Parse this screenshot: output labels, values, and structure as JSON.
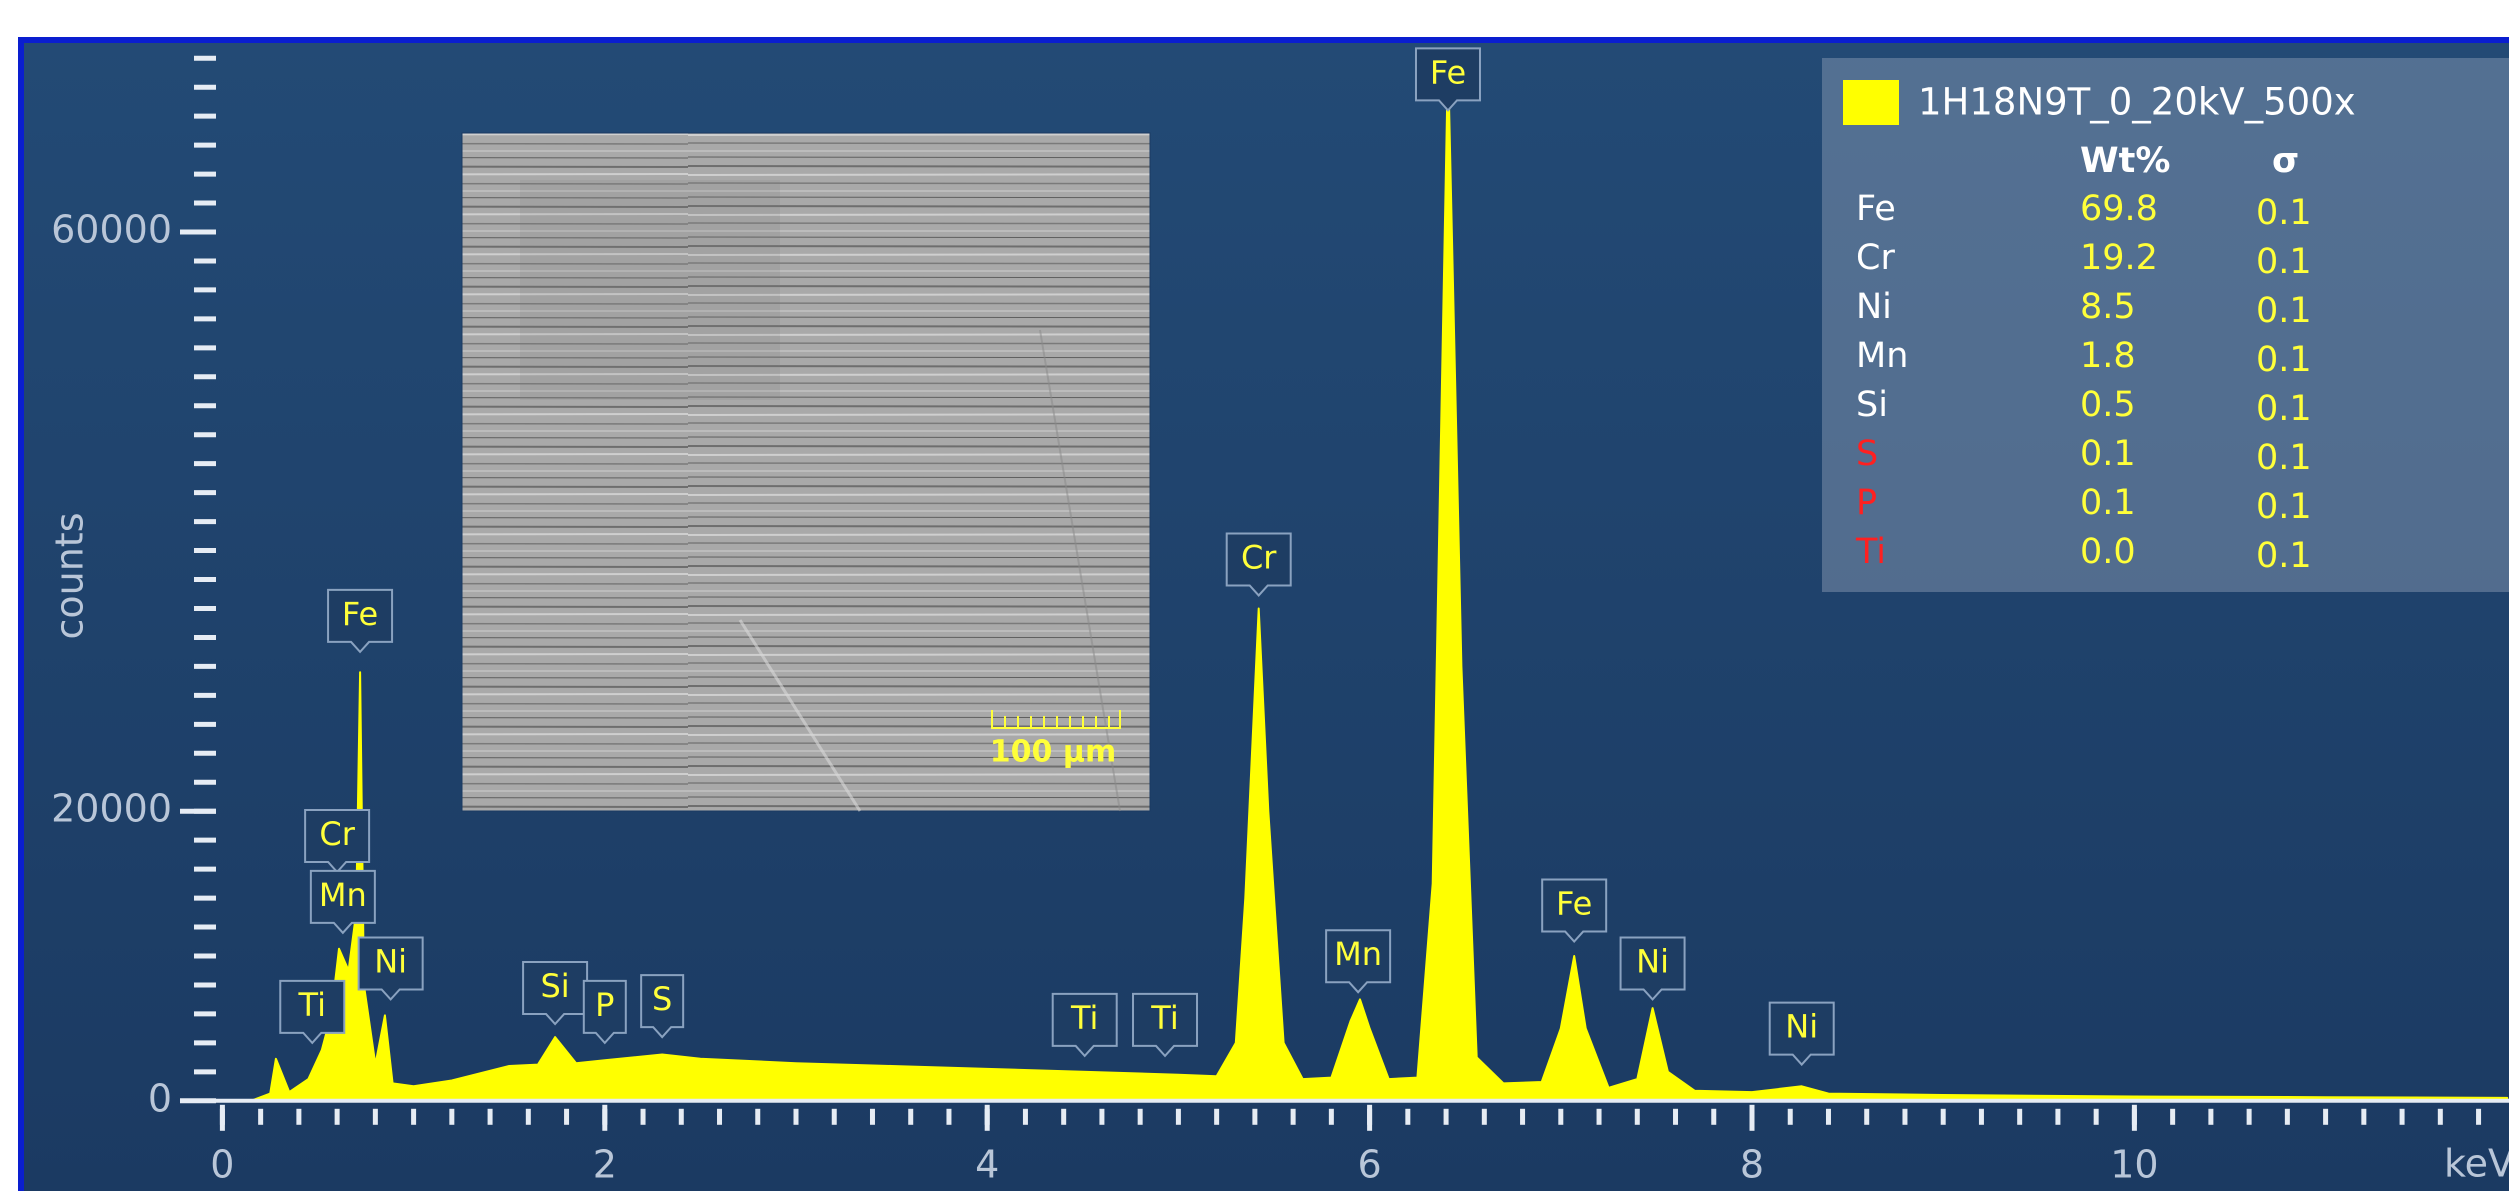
{
  "chart_data": {
    "type": "spectrum",
    "y_label": "counts",
    "x_unit": "keV",
    "xlim": [
      0,
      11.95
    ],
    "ylim": [
      0,
      72000
    ],
    "xticks": [
      0,
      2,
      4,
      6,
      8,
      10
    ],
    "yticks": [
      0,
      20000,
      60000
    ],
    "xminor_step": 0.2,
    "yminor_step": 2000,
    "x": [
      0.15,
      0.25,
      0.28,
      0.35,
      0.45,
      0.52,
      0.57,
      0.61,
      0.66,
      0.7,
      0.72,
      0.74,
      0.8,
      0.85,
      0.89,
      1.0,
      1.2,
      1.5,
      1.65,
      1.74,
      1.85,
      2.0,
      2.3,
      2.5,
      3.0,
      3.5,
      4.0,
      4.5,
      5.0,
      5.2,
      5.3,
      5.35,
      5.42,
      5.47,
      5.55,
      5.65,
      5.8,
      5.9,
      5.95,
      6.0,
      6.1,
      6.25,
      6.33,
      6.41,
      6.48,
      6.56,
      6.7,
      6.9,
      7.0,
      7.07,
      7.13,
      7.25,
      7.4,
      7.48,
      7.56,
      7.7,
      8.0,
      8.26,
      8.4,
      9.0,
      10.0,
      11.0,
      11.95
    ],
    "series": [
      {
        "name": "1H18N9T_0_20kV_500x",
        "color": "#ffff00",
        "values": [
          0,
          500,
          2900,
          600,
          1500,
          3500,
          6000,
          10500,
          9000,
          13000,
          29600,
          8000,
          2500,
          5900,
          1200,
          1000,
          1400,
          2400,
          2500,
          4400,
          2600,
          2800,
          3200,
          2900,
          2600,
          2400,
          2200,
          2000,
          1800,
          1700,
          4000,
          14000,
          34000,
          20000,
          4000,
          1500,
          1600,
          5500,
          7000,
          5000,
          1500,
          1600,
          15000,
          72000,
          30000,
          3000,
          1200,
          1300,
          5000,
          10000,
          5000,
          900,
          1500,
          6400,
          2000,
          700,
          600,
          1000,
          500,
          400,
          300,
          250,
          200
        ]
      }
    ],
    "annotations": [
      {
        "text": "Fe",
        "x": 0.72,
        "y": 31000
      },
      {
        "text": "Cr",
        "x": 0.6,
        "y": 15800
      },
      {
        "text": "Mn",
        "x": 0.63,
        "y": 11600
      },
      {
        "text": "Ni",
        "x": 0.88,
        "y": 7000
      },
      {
        "text": "Ti",
        "x": 0.47,
        "y": 4000
      },
      {
        "text": "Si",
        "x": 1.74,
        "y": 5300
      },
      {
        "text": "P",
        "x": 2.0,
        "y": 4000
      },
      {
        "text": "S",
        "x": 2.3,
        "y": 4400
      },
      {
        "text": "Ti",
        "x": 4.51,
        "y": 3100
      },
      {
        "text": "Ti",
        "x": 4.93,
        "y": 3100
      },
      {
        "text": "Cr",
        "x": 5.42,
        "y": 34900
      },
      {
        "text": "Mn",
        "x": 5.94,
        "y": 7500
      },
      {
        "text": "Fe",
        "x": 6.41,
        "y": 68400
      },
      {
        "text": "Fe",
        "x": 7.07,
        "y": 11000
      },
      {
        "text": "Ni",
        "x": 7.48,
        "y": 7000
      },
      {
        "text": "Ni",
        "x": 8.26,
        "y": 2500
      }
    ]
  },
  "results": {
    "columns": [
      "Wt%",
      "σ"
    ],
    "rows": [
      {
        "element": "Fe",
        "wt": "69.8",
        "sigma": "0.1",
        "color": "#ffffff"
      },
      {
        "element": "Cr",
        "wt": "19.2",
        "sigma": "0.1",
        "color": "#ffffff"
      },
      {
        "element": "Ni",
        "wt": "8.5",
        "sigma": "0.1",
        "color": "#ffffff"
      },
      {
        "element": "Mn",
        "wt": "1.8",
        "sigma": "0.1",
        "color": "#ffffff"
      },
      {
        "element": "Si",
        "wt": "0.5",
        "sigma": "0.1",
        "color": "#ffffff"
      },
      {
        "element": "S",
        "wt": "0.1",
        "sigma": "0.1",
        "color": "#ff2020"
      },
      {
        "element": "P",
        "wt": "0.1",
        "sigma": "0.1",
        "color": "#ff2020"
      },
      {
        "element": "Ti",
        "wt": "0.0",
        "sigma": "0.1",
        "color": "#ff2020"
      }
    ]
  },
  "inset": {
    "scale_label": "100 µm"
  }
}
